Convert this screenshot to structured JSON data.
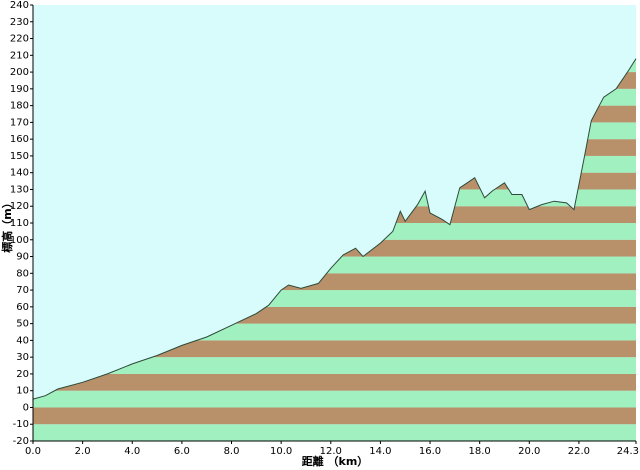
{
  "chart_data": {
    "type": "area",
    "x_label": "距離 （km）",
    "y_label": "標高（m）",
    "x": [
      0,
      0.5,
      1.0,
      2.0,
      3.0,
      4.0,
      5.0,
      6.0,
      7.0,
      8.0,
      9.0,
      9.5,
      10.0,
      10.3,
      10.8,
      11.5,
      12.0,
      12.5,
      13.0,
      13.3,
      14.0,
      14.5,
      14.8,
      15.0,
      15.5,
      15.8,
      16.0,
      16.5,
      16.8,
      17.2,
      17.5,
      17.8,
      18.2,
      18.5,
      19.0,
      19.3,
      19.7,
      20.0,
      20.5,
      21.0,
      21.5,
      21.8,
      22.2,
      22.5,
      23.0,
      23.5,
      24.0,
      24.3
    ],
    "values": [
      5,
      7,
      11,
      15,
      20,
      26,
      31,
      37,
      42,
      49,
      56,
      61,
      70,
      73,
      71,
      74,
      83,
      91,
      95,
      90,
      98,
      105,
      117,
      111,
      121,
      129,
      116,
      112,
      109,
      131,
      134,
      137,
      125,
      129,
      134,
      127,
      127,
      118,
      121,
      123,
      122,
      118,
      148,
      171,
      185,
      190,
      201,
      208
    ],
    "line_color": "#2d4a3a",
    "background": "#d8fcfc",
    "fill_colors": [
      "#a0f0c0",
      "#b8906a"
    ],
    "xlim": [
      0,
      24.3
    ],
    "xticks": [
      {
        "value": 0,
        "label": "0.0"
      },
      {
        "value": 2,
        "label": "2.0"
      },
      {
        "value": 4,
        "label": "4.0"
      },
      {
        "value": 6,
        "label": "6.0"
      },
      {
        "value": 8,
        "label": "8.0"
      },
      {
        "value": 10,
        "label": "10.0"
      },
      {
        "value": 12,
        "label": "12.0"
      },
      {
        "value": 14,
        "label": "14.0"
      },
      {
        "value": 16,
        "label": "16.0"
      },
      {
        "value": 18,
        "label": "18.0"
      },
      {
        "value": 20,
        "label": "20.0"
      },
      {
        "value": 22,
        "label": "22.0"
      },
      24.3
    ],
    "ylim": [
      -20,
      240
    ],
    "yticks": [
      -20,
      -10,
      0,
      10,
      20,
      30,
      40,
      50,
      60,
      70,
      80,
      90,
      100,
      110,
      120,
      130,
      140,
      150,
      160,
      170,
      180,
      190,
      200,
      210,
      220,
      230,
      240
    ]
  }
}
